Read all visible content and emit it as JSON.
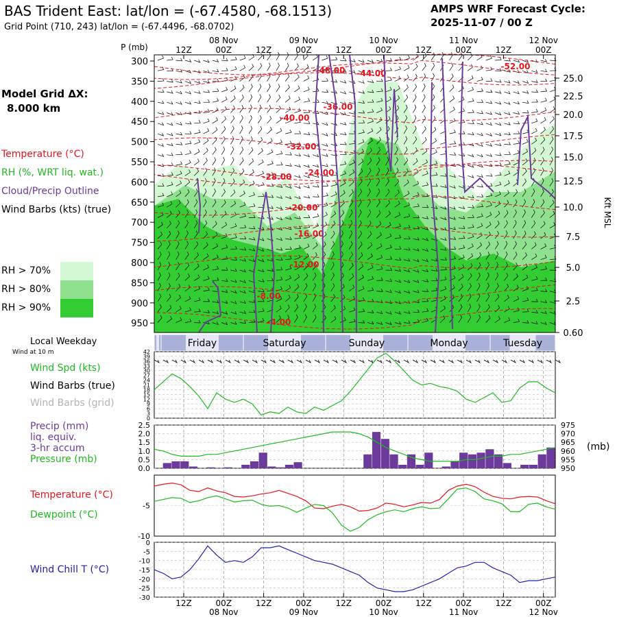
{
  "header": {
    "title": "BAS Trident East:  lat/lon = (-67.4580, -68.1513)",
    "grid_point": "Grid Point (710, 243) lat/lon = (-67.4496, -68.0702)",
    "cycle_line1": "AMPS WRF Forecast Cycle:",
    "cycle_line2": "2025-11-07 / 00  Z"
  },
  "legend": {
    "model_grid_line1": "Model Grid ΔX:",
    "model_grid_line2": "8.000 km",
    "temperature": "Temperature (°C)",
    "rh": "RH (%, WRT liq. wat.)",
    "cloud": "Cloud/Precip Outline",
    "wind_barbs": "Wind Barbs (kts) (true)",
    "rh70": "RH > 70%",
    "rh80": "RH > 80%",
    "rh90": "RH > 90%",
    "colors": {
      "temperature": "#e8141e",
      "rh": "#1fba1f",
      "cloud": "#6b3a9a",
      "rh70": "#d4f8d4",
      "rh80": "#8fe08f",
      "rh90": "#33cc33"
    }
  },
  "time_axis": {
    "top_ticks": [
      "12Z",
      "00Z",
      "12Z",
      "00Z",
      "12Z",
      "00Z",
      "12Z",
      "00Z",
      "12Z",
      "00Z"
    ],
    "dates": [
      "08 Nov",
      "09 Nov",
      "10 Nov",
      "11 Nov",
      "12 Nov"
    ],
    "weekdays": [
      "Friday",
      "Saturday",
      "Sunday",
      "Monday",
      "Tuesday"
    ],
    "local_weekday_label": "Local Weekday",
    "wind_at_10m": "Wind at 10 m"
  },
  "cross_section": {
    "p_label": "P (mb)",
    "pressure_levels": [
      "300",
      "350",
      "400",
      "450",
      "500",
      "550",
      "600",
      "650",
      "700",
      "750",
      "800",
      "850",
      "900",
      "950"
    ],
    "height_ticks": [
      "25.0",
      "22.5",
      "20.0",
      "17.5",
      "15.0",
      "12.5",
      "10.0",
      "7.5",
      "5.0",
      "2.5",
      "0.60"
    ],
    "height_label": "Kft MSL",
    "temp_contours": [
      "-52.00",
      "-48.00",
      "-44.00",
      "-40.00",
      "-36.00",
      "-32.00",
      "-28.00",
      "-24.00",
      "-20.00",
      "-16.00",
      "-12.00",
      "-8.00",
      "-4.00"
    ]
  },
  "chart_data": [
    {
      "type": "line",
      "title": "Wind Spd (kts)",
      "series_labels": {
        "speed": "Wind Spd (kts)",
        "barbs_true": "Wind Barbs (true)",
        "barbs_grid": "Wind Barbs (grid)"
      },
      "ylim": [
        0,
        42
      ],
      "ytick_labels": [
        "0",
        "3",
        "6",
        "9",
        "12",
        "15",
        "18",
        "21",
        "24",
        "27",
        "30",
        "33",
        "36",
        "39",
        "42"
      ],
      "values": [
        18,
        23,
        28,
        25,
        20,
        14,
        6,
        16,
        12,
        10,
        12,
        9,
        2,
        4,
        3,
        7,
        4,
        3,
        7,
        5,
        8,
        11,
        17,
        24,
        31,
        38,
        41,
        36,
        30,
        24,
        21,
        22,
        20,
        19,
        17,
        12,
        10,
        13,
        16,
        10,
        11,
        19,
        23,
        23,
        19,
        16
      ]
    },
    {
      "type": "bar",
      "title": "Precip (mm) liq. equiv. 3-hr accum / Pressure (mb)",
      "series_labels": {
        "precip_line1": "Precip (mm)",
        "precip_line2": "liq. equiv.",
        "precip_line3": "3-hr accum",
        "pressure": "Pressure (mb)",
        "pressure_units": "(mb)"
      },
      "ylim_precip": [
        0,
        2.5
      ],
      "ytick_labels_precip": [
        "0.0",
        "0.5",
        "1.0",
        "1.5",
        "2.0",
        "2.5"
      ],
      "ylim_pressure": [
        950,
        975
      ],
      "ytick_labels_pressure": [
        "950",
        "955",
        "960",
        "965",
        "970",
        "975"
      ],
      "precip": [
        0.0,
        0.3,
        0.4,
        0.4,
        0.1,
        0.0,
        0.05,
        0.0,
        0.05,
        0.0,
        0.2,
        0.4,
        0.9,
        0.1,
        0.05,
        0.2,
        0.35,
        0.0,
        0.0,
        0.0,
        0.0,
        0.0,
        0.0,
        0.0,
        0.8,
        2.1,
        1.7,
        0.8,
        0.2,
        0.8,
        0.2,
        0.9,
        0.0,
        0.1,
        0.4,
        0.9,
        0.8,
        0.9,
        1.1,
        0.8,
        0.3,
        0.0,
        0.2,
        0.2,
        0.8,
        1.2
      ],
      "pressure": [
        961,
        960,
        958,
        957,
        957,
        957,
        958,
        958,
        959,
        960,
        961,
        962,
        963,
        964,
        965,
        966,
        967,
        968,
        969,
        970,
        971,
        971,
        971,
        970,
        968,
        965,
        962,
        960,
        958,
        956,
        955,
        954,
        954,
        954,
        954,
        955,
        955,
        956,
        957,
        957,
        958,
        958,
        959,
        960,
        961,
        962
      ]
    },
    {
      "type": "line",
      "title": "Temperature / Dewpoint (°C)",
      "series_labels": {
        "temperature": "Temperature (°C)",
        "dewpoint": "Dewpoint (°C)"
      },
      "ylim": [
        -10,
        0
      ],
      "ytick_labels": [
        "-5",
        "-10"
      ],
      "temperature": [
        -1.8,
        -1.5,
        -1.3,
        -1.6,
        -2.5,
        -2.7,
        -2.1,
        -2.6,
        -2.9,
        -3.5,
        -3.6,
        -3.4,
        -3.1,
        -2.9,
        -2.5,
        -3.0,
        -3.5,
        -4.2,
        -5.4,
        -5.5,
        -5.1,
        -4.8,
        -5.2,
        -5.9,
        -5.8,
        -5.4,
        -4.6,
        -4.8,
        -5.2,
        -4.9,
        -4.5,
        -4.6,
        -4.0,
        -2.5,
        -1.8,
        -1.5,
        -1.9,
        -2.8,
        -3.5,
        -3.8,
        -3.9,
        -3.6,
        -3.5,
        -3.6,
        -4.2,
        -4.7
      ],
      "dewpoint": [
        -4.3,
        -4.0,
        -3.7,
        -3.8,
        -4.5,
        -4.2,
        -3.7,
        -3.4,
        -3.9,
        -4.4,
        -4.2,
        -4.1,
        -4.8,
        -5.1,
        -5.0,
        -5.4,
        -6.1,
        -5.4,
        -4.8,
        -5.0,
        -6.2,
        -8.2,
        -9.2,
        -8.6,
        -7.3,
        -6.5,
        -6.0,
        -5.7,
        -6.0,
        -5.5,
        -5.2,
        -5.5,
        -5.4,
        -3.9,
        -2.3,
        -2.1,
        -2.7,
        -3.9,
        -4.2,
        -4.7,
        -6.0,
        -6.0,
        -4.8,
        -4.6,
        -5.2,
        -5.6
      ]
    },
    {
      "type": "line",
      "title": "Wind Chill T (°C)",
      "series_labels": {
        "windchill": "Wind Chill T (°C)"
      },
      "ylim": [
        -30,
        0
      ],
      "ytick_labels": [
        "0",
        "-5",
        "-10",
        "-15",
        "-20",
        "-25",
        "-30"
      ],
      "values": [
        -15,
        -17,
        -20,
        -19,
        -15,
        -9,
        -2,
        -7,
        -11,
        -10,
        -11,
        -8,
        -3,
        -3,
        -2,
        -4,
        -6,
        -8,
        -10,
        -11,
        -12,
        -14,
        -16,
        -18,
        -22,
        -25,
        -26,
        -27,
        -27,
        -26,
        -24,
        -22,
        -20,
        -17,
        -14,
        -13,
        -11,
        -11,
        -14,
        -16,
        -18,
        -22,
        -21,
        -21,
        -20,
        -19
      ]
    }
  ]
}
